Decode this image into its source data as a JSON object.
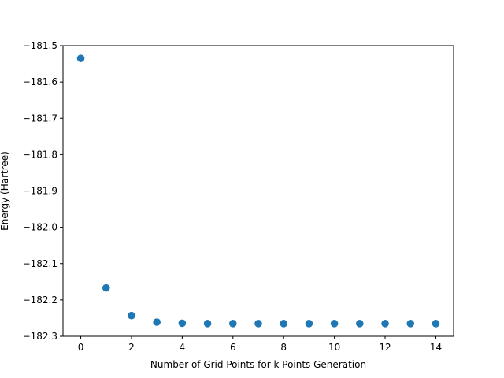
{
  "chart_data": {
    "type": "scatter",
    "title": "",
    "xlabel": "Number of Grid Points for k Points Generation",
    "ylabel": "Energy (Hartree)",
    "xlim": [
      -0.7,
      14.7
    ],
    "ylim": [
      -182.3,
      -181.5
    ],
    "xticks": [
      0,
      2,
      4,
      6,
      8,
      10,
      12,
      14
    ],
    "xtick_labels": [
      "0",
      "2",
      "4",
      "6",
      "8",
      "10",
      "12",
      "14"
    ],
    "yticks": [
      -181.5,
      -181.6,
      -181.7,
      -181.8,
      -181.9,
      -182.0,
      -182.1,
      -182.2,
      -182.3
    ],
    "ytick_labels": [
      "−181.5",
      "−181.6",
      "−181.7",
      "−181.8",
      "−181.9",
      "−182.0",
      "−182.1",
      "−182.2",
      "−182.3"
    ],
    "grid": false,
    "color": "#1f77b4",
    "series": [
      {
        "x": [
          0,
          1,
          2,
          3,
          4,
          5,
          6,
          7,
          8,
          9,
          10,
          11,
          12,
          13,
          14
        ],
        "y": [
          -181.535,
          -182.167,
          -182.243,
          -182.261,
          -182.264,
          -182.265,
          -182.265,
          -182.265,
          -182.265,
          -182.265,
          -182.265,
          -182.265,
          -182.265,
          -182.265,
          -182.265
        ]
      }
    ]
  }
}
